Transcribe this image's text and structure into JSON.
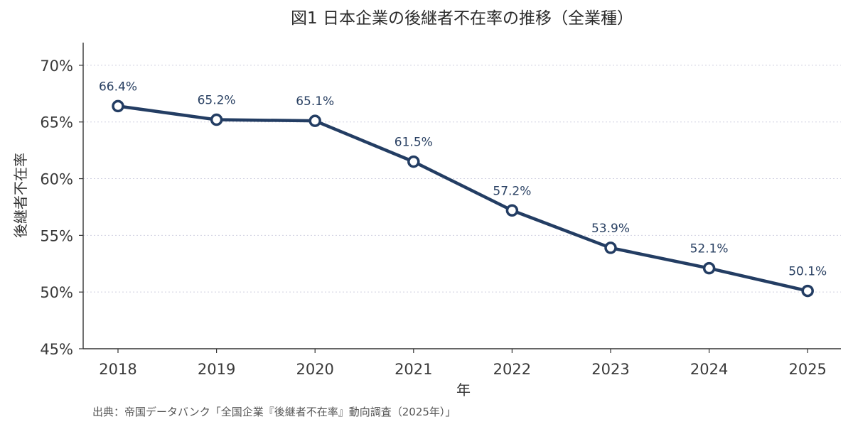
{
  "chart_data": {
    "type": "line",
    "title": "図1 日本企業の後継者不在率の推移（全業種）",
    "xlabel": "年",
    "ylabel": "後継者不在率",
    "categories": [
      "2018",
      "2019",
      "2020",
      "2021",
      "2022",
      "2023",
      "2024",
      "2025"
    ],
    "series": [
      {
        "values": [
          66.4,
          65.2,
          65.1,
          61.5,
          57.2,
          53.9,
          52.1,
          50.1
        ],
        "labels": [
          "66.4%",
          "65.2%",
          "65.1%",
          "61.5%",
          "57.2%",
          "53.9%",
          "52.1%",
          "50.1%"
        ]
      }
    ],
    "ylim": [
      45,
      72
    ],
    "yticks": [
      45,
      50,
      55,
      60,
      65,
      70
    ],
    "ytick_labels": [
      "45%",
      "50%",
      "55%",
      "60%",
      "65%",
      "70%"
    ],
    "grid": "horizontal dotted",
    "colors": {
      "line": "#233d63",
      "marker_fill": "#ffffff",
      "label": "#2a4163"
    }
  },
  "source": "出典：帝国データバンク「全国企業『後継者不在率』動向調査（2025年）」"
}
